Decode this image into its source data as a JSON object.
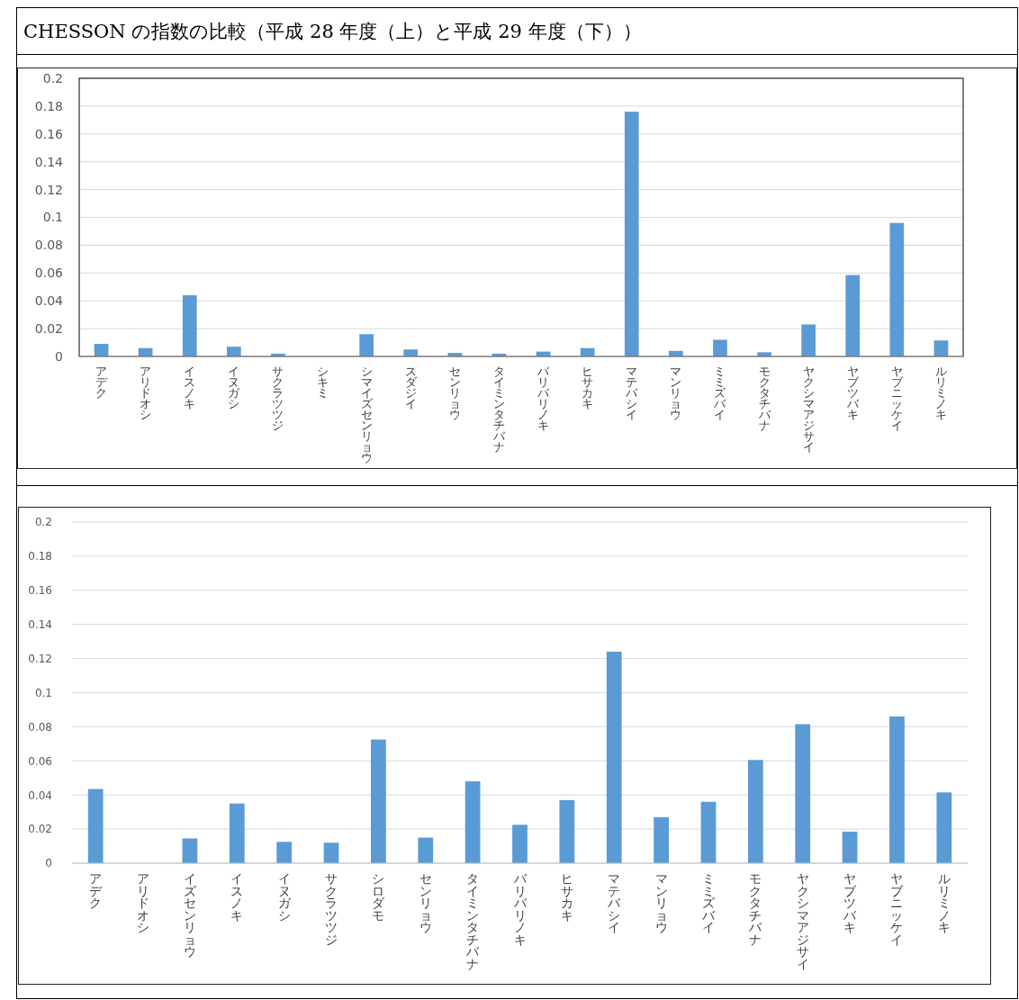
{
  "chart_data": [
    {
      "type": "bar",
      "title": "CHESSON の指数の比較（平成 28 年度（上）と平成 29 年度（下））",
      "categories": [
        "アデク",
        "アリドオシ",
        "イスノキ",
        "イヌガシ",
        "サクラツツジ",
        "シキミ",
        "シマイズセンリョウ",
        "スダジイ",
        "センリョウ",
        "タイミンタチバナ",
        "バリバリノキ",
        "ヒサカキ",
        "マテバシイ",
        "マンリョウ",
        "ミミズバイ",
        "モクタチバナ",
        "ヤクシマアジサイ",
        "ヤブツバキ",
        "ヤブニッケイ",
        "ルリミノキ"
      ],
      "values": [
        0.009,
        0.006,
        0.044,
        0.007,
        0.002,
        0,
        0.016,
        0.005,
        0.0025,
        0.002,
        0.0035,
        0.006,
        0.176,
        0.004,
        0.012,
        0.003,
        0.023,
        0.0585,
        0.096,
        0.0115
      ],
      "color": "#5b9bd5",
      "ylim": [
        0,
        0.2
      ],
      "yticks": [
        0,
        0.02,
        0.04,
        0.06,
        0.08,
        0.1,
        0.12,
        0.14,
        0.16,
        0.18,
        0.2
      ],
      "grid": "y"
    },
    {
      "type": "bar",
      "categories": [
        "アデク",
        "アリドオシ",
        "イズセンリョウ",
        "イスノキ",
        "イヌガシ",
        "サクラツツジ",
        "シロダモ",
        "センリョウ",
        "タイミンタチバナ",
        "バリバリノキ",
        "ヒサカキ",
        "マテバシイ",
        "マンリョウ",
        "ミミズバイ",
        "モクタチバナ",
        "ヤクシマアジサイ",
        "ヤブツバキ",
        "ヤブニッケイ",
        "ルリミノキ"
      ],
      "values": [
        0.0435,
        0,
        0.0145,
        0.035,
        0.0125,
        0.012,
        0.0725,
        0.015,
        0.048,
        0.0225,
        0.037,
        0.124,
        0.027,
        0.036,
        0.0605,
        0.0815,
        0.0185,
        0.086,
        0.0415
      ],
      "color": "#5b9bd5",
      "ylim": [
        0,
        0.2
      ],
      "yticks": [
        0,
        0.02,
        0.04,
        0.06,
        0.08,
        0.1,
        0.12,
        0.14,
        0.16,
        0.18,
        0.2
      ],
      "grid": "y"
    }
  ]
}
